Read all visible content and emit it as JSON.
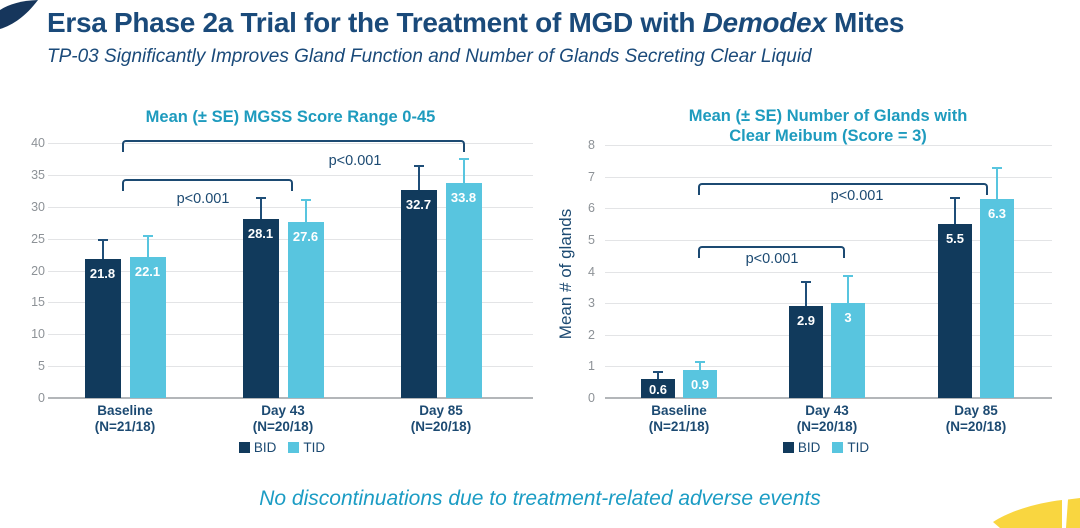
{
  "header": {
    "title_prefix": "Ersa Phase 2a Trial for the Treatment of MGD with ",
    "title_italic": "Demodex",
    "title_suffix": " Mites",
    "subtitle": "TP-03 Significantly Improves Gland Function and Number of Glands Secreting Clear Liquid"
  },
  "footer": {
    "note": "No discontinuations due to treatment-related adverse events"
  },
  "colors": {
    "navy": "#113A5C",
    "light_blue": "#58C5DF",
    "teal_title": "#1E9BBE",
    "yellow_accent": "#F9D640",
    "tick_gray": "#8D9297"
  },
  "chart_data": [
    {
      "type": "bar",
      "title": "Mean (± SE) MGSS Score Range 0-45",
      "title_lines": [
        "Mean (± SE) MGSS Score Range 0-45"
      ],
      "ylabel": "",
      "ylim": [
        0,
        40
      ],
      "ytick_step": 5,
      "grid": true,
      "legend_position": "bottom",
      "categories": [
        {
          "label": "Baseline",
          "n": "(N=21/18)"
        },
        {
          "label": "Day 43",
          "n": "(N=20/18)"
        },
        {
          "label": "Day 85",
          "n": "(N=20/18)"
        }
      ],
      "series": [
        {
          "name": "BID",
          "color": "#113A5C",
          "error_color": "#1F4E78",
          "values": [
            21.8,
            28.1,
            32.7
          ],
          "labels": [
            "21.8",
            "28.1",
            "32.7"
          ],
          "se": [
            3.1,
            3.5,
            3.8
          ]
        },
        {
          "name": "TID",
          "color": "#58C5DF",
          "error_color": "#58C5DF",
          "values": [
            22.1,
            27.6,
            33.8
          ],
          "labels": [
            "22.1",
            "27.6",
            "33.8"
          ],
          "se": [
            3.5,
            3.6,
            3.9
          ]
        }
      ],
      "annotations": [
        {
          "label": "p<0.001",
          "from_group": 0,
          "to_group": 2,
          "y": 40.5
        },
        {
          "label": "p<0.001",
          "from_group": 0,
          "to_group": 1,
          "y": 34.4
        }
      ]
    },
    {
      "type": "bar",
      "title": "Mean (± SE) Number of Glands with Clear Meibum (Score = 3)",
      "title_lines": [
        "Mean (± SE) Number of Glands with",
        "Clear Meibum (Score = 3)"
      ],
      "ylabel": "Mean # of glands",
      "ylim": [
        0,
        8
      ],
      "ytick_step": 1,
      "grid": true,
      "legend_position": "bottom",
      "categories": [
        {
          "label": "Baseline",
          "n": "(N=21/18)"
        },
        {
          "label": "Day 43",
          "n": "(N=20/18)"
        },
        {
          "label": "Day 85",
          "n": "(N=20/18)"
        }
      ],
      "series": [
        {
          "name": "BID",
          "color": "#113A5C",
          "error_color": "#1F4E78",
          "values": [
            0.6,
            2.9,
            5.5
          ],
          "labels": [
            "0.6",
            "2.9",
            "5.5"
          ],
          "se": [
            0.25,
            0.8,
            0.85
          ]
        },
        {
          "name": "TID",
          "color": "#58C5DF",
          "error_color": "#58C5DF",
          "values": [
            0.9,
            3.0,
            6.3
          ],
          "labels": [
            "0.9",
            "3",
            "6.3"
          ],
          "se": [
            0.27,
            0.9,
            1.0
          ]
        }
      ],
      "annotations": [
        {
          "label": "p<0.001",
          "from_group": 0,
          "to_group": 2,
          "y": 6.8
        },
        {
          "label": "p<0.001",
          "from_group": 0,
          "to_group": 1,
          "y": 4.8
        }
      ]
    }
  ]
}
